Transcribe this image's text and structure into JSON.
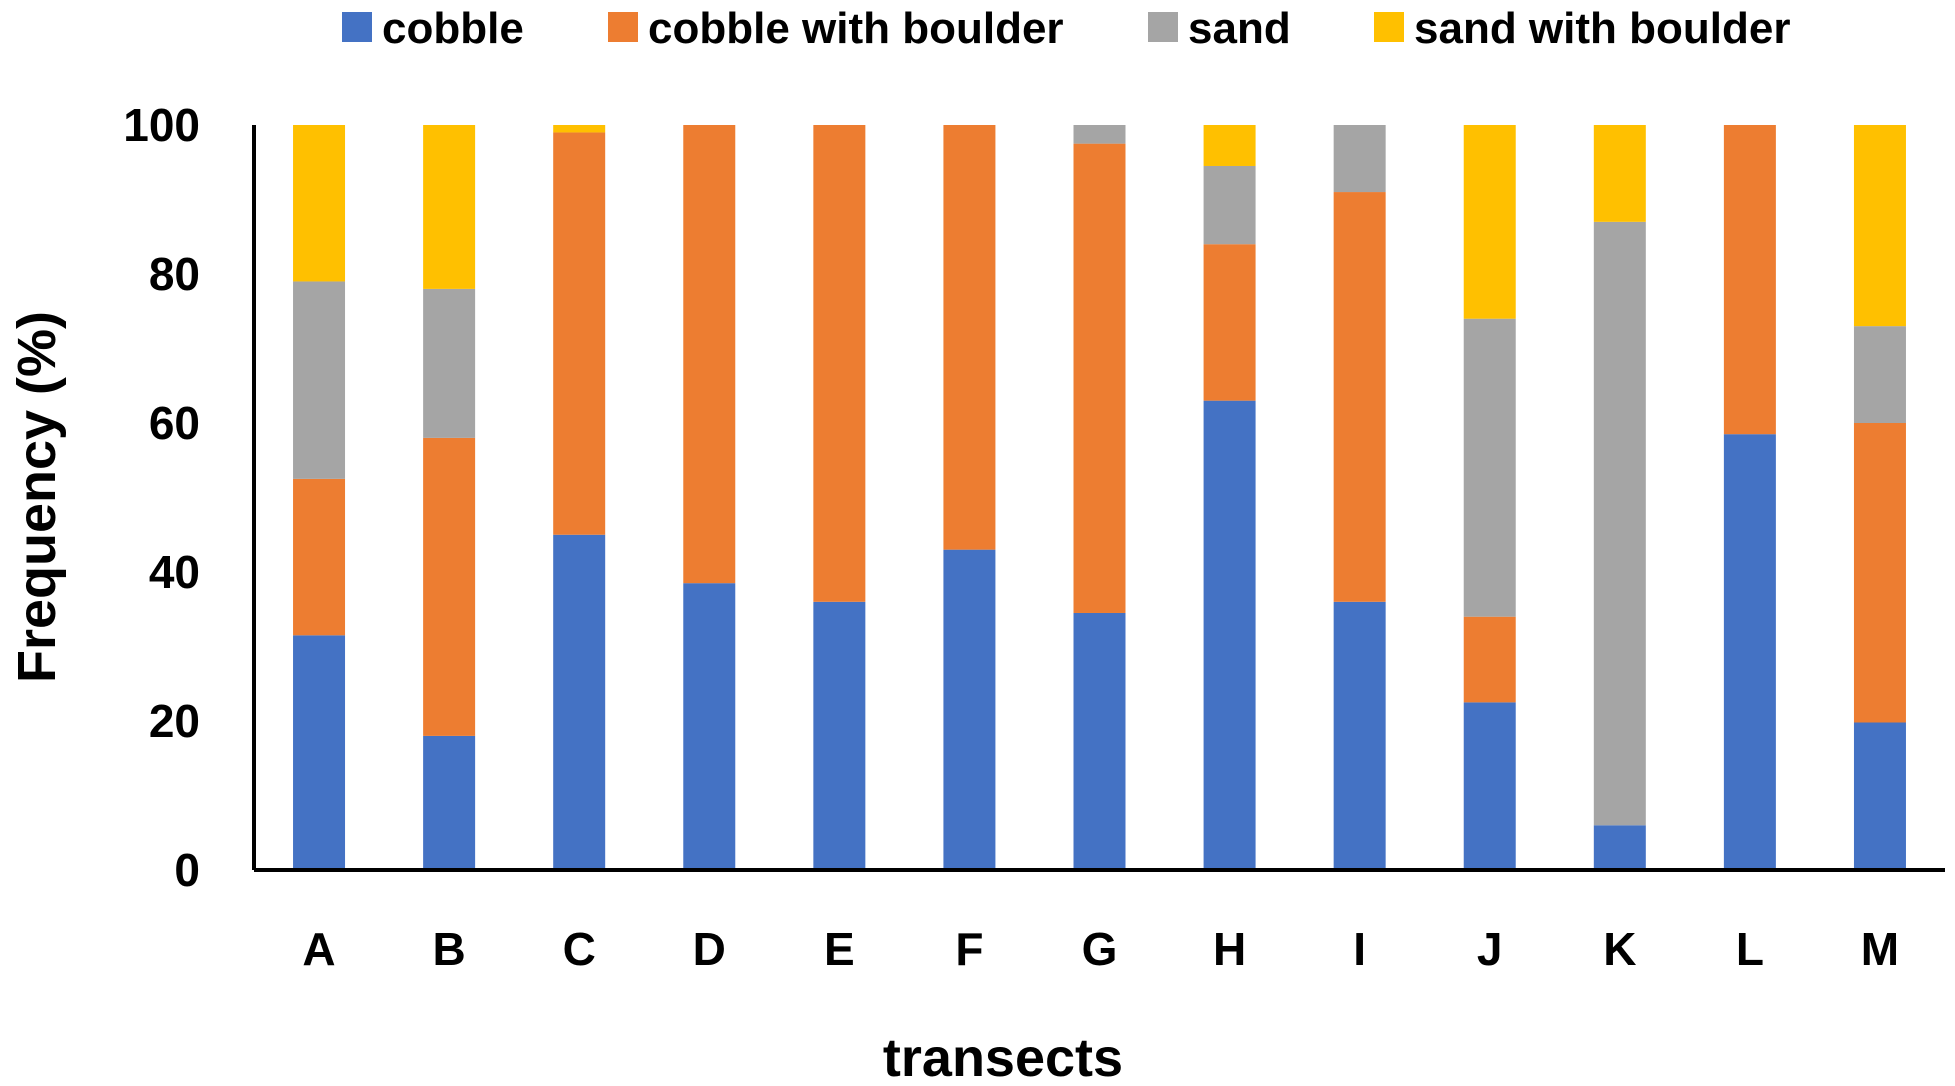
{
  "chart_data": {
    "type": "bar",
    "stacked": true,
    "title": "",
    "xlabel": "transects",
    "ylabel": "Frequency (%)",
    "ylim": [
      0,
      100
    ],
    "yticks": [
      "0",
      "20",
      "40",
      "60",
      "80",
      "100"
    ],
    "grid": false,
    "legend_position": "top",
    "categories": [
      "A",
      "B",
      "C",
      "D",
      "E",
      "F",
      "G",
      "H",
      "I",
      "J",
      "K",
      "L",
      "M"
    ],
    "series": [
      {
        "name": "cobble",
        "color": "#4472C4",
        "values": [
          31.5,
          18,
          45,
          38.5,
          36,
          43,
          34.5,
          63,
          36,
          22.5,
          6,
          58.5,
          19.8
        ]
      },
      {
        "name": "cobble with boulder",
        "color": "#ED7D31",
        "values": [
          21,
          40,
          54,
          61.5,
          64,
          57,
          63,
          21,
          55,
          11.5,
          0,
          41.5,
          40.2
        ]
      },
      {
        "name": "sand",
        "color": "#A5A5A5",
        "values": [
          26.5,
          20,
          0,
          0,
          0,
          0,
          2.5,
          10.5,
          9,
          40,
          81,
          0,
          13
        ]
      },
      {
        "name": "sand with boulder",
        "color": "#FFC000",
        "values": [
          21,
          22,
          1,
          0,
          0,
          0,
          0,
          5.5,
          0,
          26,
          13,
          0,
          27
        ]
      }
    ]
  }
}
